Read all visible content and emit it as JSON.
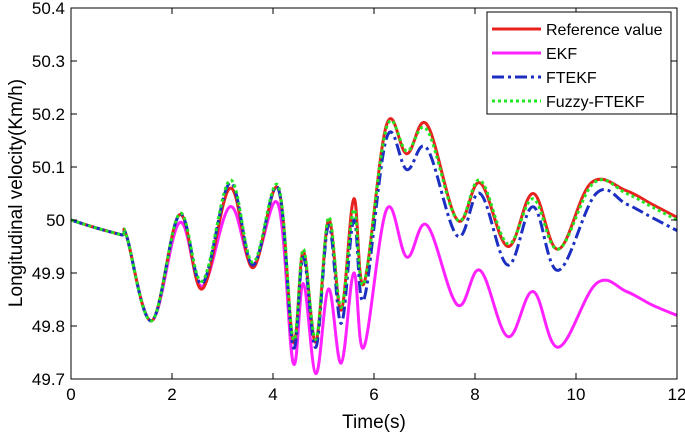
{
  "chart_data": {
    "type": "line",
    "title": "",
    "xlabel": "Time(s)",
    "ylabel": "Longitudinal velocity(Km/h)",
    "xlim": [
      0,
      12
    ],
    "ylim": [
      49.7,
      50.4
    ],
    "xticks": [
      0,
      2,
      4,
      6,
      8,
      10,
      12
    ],
    "xtick_labels": [
      "0",
      "2",
      "4",
      "6",
      "8",
      "10",
      "12"
    ],
    "yticks": [
      49.7,
      49.8,
      49.9,
      50,
      50.1,
      50.2,
      50.3,
      50.4
    ],
    "ytick_labels": [
      "49.7",
      "49.8",
      "49.9",
      "50",
      "50.1",
      "50.2",
      "50.3",
      "50.4"
    ],
    "grid": false,
    "legend_position": "top-right",
    "series": [
      {
        "name": "Reference value",
        "color": "#e8201e",
        "style": "solid",
        "x": [
          0,
          0.5,
          1.0,
          1.1,
          1.6,
          2.15,
          2.6,
          3.15,
          3.6,
          4.1,
          4.4,
          4.6,
          4.85,
          5.1,
          5.35,
          5.6,
          5.8,
          6.25,
          6.65,
          7.05,
          7.65,
          8.1,
          8.65,
          9.15,
          9.65,
          10.3,
          11.0,
          11.5,
          12.0
        ],
        "y": [
          50.0,
          49.985,
          49.972,
          49.97,
          49.81,
          50.01,
          49.87,
          50.06,
          49.91,
          50.06,
          49.77,
          49.94,
          49.77,
          50.0,
          49.83,
          50.04,
          49.88,
          50.18,
          50.125,
          50.18,
          50.0,
          50.07,
          49.95,
          50.05,
          49.945,
          50.07,
          50.055,
          50.03,
          50.005
        ]
      },
      {
        "name": "EKF",
        "color": "#ff21ff",
        "style": "solid",
        "x": [
          0,
          0.5,
          1.0,
          1.1,
          1.6,
          2.15,
          2.6,
          3.15,
          3.6,
          4.1,
          4.4,
          4.6,
          4.85,
          5.1,
          5.35,
          5.6,
          5.8,
          6.25,
          6.65,
          7.05,
          7.65,
          8.1,
          8.65,
          9.15,
          9.65,
          10.4,
          11.0,
          11.5,
          12.0
        ],
        "y": [
          50.0,
          49.985,
          49.972,
          49.97,
          49.81,
          49.995,
          49.875,
          50.025,
          49.915,
          50.03,
          49.73,
          49.88,
          49.71,
          49.87,
          49.73,
          49.9,
          49.76,
          50.02,
          49.93,
          49.99,
          49.84,
          49.905,
          49.78,
          49.865,
          49.76,
          49.88,
          49.865,
          49.84,
          49.82
        ]
      },
      {
        "name": "FTEKF",
        "color": "#1c2fc2",
        "style": "dashdot",
        "x": [
          0,
          0.5,
          1.0,
          1.1,
          1.6,
          2.15,
          2.6,
          3.15,
          3.6,
          4.1,
          4.4,
          4.6,
          4.85,
          5.1,
          5.35,
          5.6,
          5.8,
          6.25,
          6.65,
          7.05,
          7.65,
          8.1,
          8.65,
          9.15,
          9.65,
          10.4,
          11.0,
          11.5,
          12.0
        ],
        "y": [
          50.0,
          49.985,
          49.972,
          49.97,
          49.81,
          50.01,
          49.88,
          50.07,
          49.915,
          50.06,
          49.76,
          49.93,
          49.76,
          49.99,
          49.805,
          50.0,
          49.85,
          50.155,
          50.095,
          50.135,
          49.97,
          50.05,
          49.915,
          50.025,
          49.905,
          50.05,
          50.03,
          50.005,
          49.98
        ]
      },
      {
        "name": "Fuzzy-FTEKF",
        "color": "#22e622",
        "style": "dotted",
        "x": [
          0,
          0.5,
          1.0,
          1.1,
          1.6,
          2.15,
          2.6,
          3.15,
          3.6,
          4.1,
          4.4,
          4.6,
          4.85,
          5.1,
          5.35,
          5.6,
          5.8,
          6.25,
          6.65,
          7.05,
          7.65,
          8.1,
          8.65,
          9.15,
          9.65,
          10.35,
          11.0,
          11.5,
          12.0
        ],
        "y": [
          50.0,
          49.985,
          49.972,
          49.97,
          49.81,
          50.012,
          49.885,
          50.075,
          49.92,
          50.065,
          49.775,
          49.945,
          49.775,
          50.005,
          49.835,
          50.02,
          49.88,
          50.175,
          50.13,
          50.17,
          50.0,
          50.075,
          49.955,
          50.04,
          49.945,
          50.07,
          50.05,
          50.025,
          50.0
        ]
      }
    ]
  }
}
